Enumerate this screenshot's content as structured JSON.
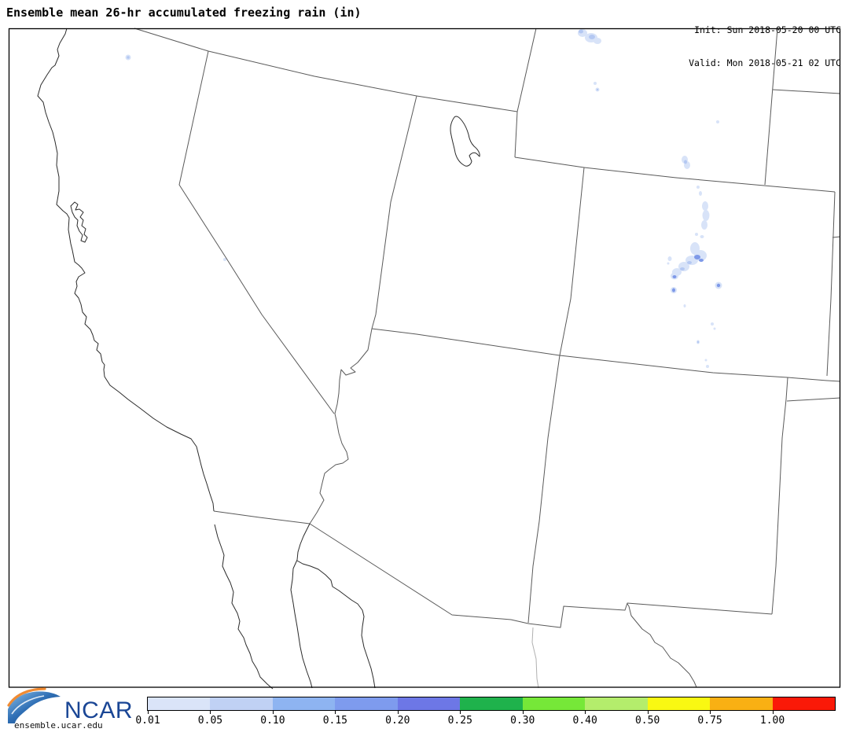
{
  "header": {
    "title": "Ensemble mean 26-hr accumulated freezing rain (in)",
    "init_line": "Init: Sun 2018-05-20 00 UTC",
    "valid_line": "Valid: Mon 2018-05-21 02 UTC"
  },
  "branding": {
    "logo_text": "NCAR",
    "website": "ensemble.ucar.edu",
    "logo_blue_dark": "#0c3a74",
    "logo_blue_light": "#8cc0e8",
    "logo_orange": "#f08b33",
    "logo_text_color": "#1a4695"
  },
  "colorbar": {
    "labels": [
      "0.01",
      "0.05",
      "0.10",
      "0.15",
      "0.20",
      "0.25",
      "0.30",
      "0.40",
      "0.50",
      "0.75",
      "1.00"
    ],
    "colors": [
      "#dae4f8",
      "#c0d1f4",
      "#8eb4f1",
      "#7e9bee",
      "#6d77e6",
      "#1fb24c",
      "#76e838",
      "#b4ed6c",
      "#f9f812",
      "#f9b013",
      "#fa1908"
    ]
  },
  "precip": {
    "shades": {
      "light": "#d8e3f8",
      "mid": "#b4c8f2",
      "dark": "#7e99e8"
    },
    "blobs": [
      [
        163,
        73,
        3.5,
        3.5,
        "light"
      ],
      [
        163,
        73,
        1.7,
        1.7,
        "mid"
      ],
      [
        286,
        330,
        2,
        2,
        "light"
      ],
      [
        741,
        42,
        6,
        5,
        "light"
      ],
      [
        752,
        48,
        8,
        6,
        "light"
      ],
      [
        760,
        52,
        5,
        4,
        "light"
      ],
      [
        739,
        40,
        3,
        2.5,
        "mid"
      ],
      [
        753,
        47,
        4,
        3,
        "mid"
      ],
      [
        757,
        106,
        2,
        2,
        "light"
      ],
      [
        760,
        114,
        2.5,
        2.5,
        "light"
      ],
      [
        760,
        114,
        1.2,
        1.2,
        "mid"
      ],
      [
        913,
        155,
        2,
        2,
        "light"
      ],
      [
        871,
        203,
        4,
        5,
        "light"
      ],
      [
        874,
        210,
        4,
        5,
        "light"
      ],
      [
        872,
        206,
        2,
        2.5,
        "mid"
      ],
      [
        888,
        238,
        2,
        2,
        "light"
      ],
      [
        891,
        246,
        2,
        3,
        "light"
      ],
      [
        897,
        262,
        4,
        6,
        "light"
      ],
      [
        898,
        274,
        4.5,
        7,
        "light"
      ],
      [
        896,
        286,
        4,
        6,
        "light"
      ],
      [
        886,
        298,
        2,
        2,
        "light"
      ],
      [
        893,
        301,
        2.5,
        2,
        "light"
      ],
      [
        884,
        316,
        6,
        8,
        "light"
      ],
      [
        891,
        325,
        8,
        7,
        "light"
      ],
      [
        880,
        331,
        8,
        6,
        "light"
      ],
      [
        870,
        339,
        7,
        6,
        "light"
      ],
      [
        861,
        346,
        6,
        5,
        "light"
      ],
      [
        887,
        327,
        4,
        3,
        "dark"
      ],
      [
        892,
        331,
        3,
        2,
        "dark"
      ],
      [
        877,
        334,
        3,
        2,
        "mid"
      ],
      [
        868,
        342,
        3,
        2,
        "mid"
      ],
      [
        852,
        329,
        2.5,
        3,
        "light"
      ],
      [
        850,
        335,
        1.5,
        1.5,
        "light"
      ],
      [
        858,
        351,
        5,
        4.5,
        "light"
      ],
      [
        858,
        352,
        2.5,
        2,
        "dark"
      ],
      [
        857,
        369,
        4,
        4,
        "light"
      ],
      [
        857,
        369,
        2,
        2.5,
        "dark"
      ],
      [
        914,
        363,
        4.5,
        4.5,
        "light"
      ],
      [
        914,
        363,
        2.2,
        2.2,
        "dark"
      ],
      [
        871,
        389,
        1.5,
        2,
        "light"
      ],
      [
        906,
        412,
        2,
        2,
        "light"
      ],
      [
        909,
        418,
        1.5,
        1.5,
        "light"
      ],
      [
        888,
        435,
        2,
        2.5,
        "light"
      ],
      [
        888,
        435,
        1,
        1.5,
        "mid"
      ],
      [
        898,
        458,
        1.5,
        1.5,
        "light"
      ],
      [
        900,
        466,
        2,
        2,
        "light"
      ]
    ]
  }
}
